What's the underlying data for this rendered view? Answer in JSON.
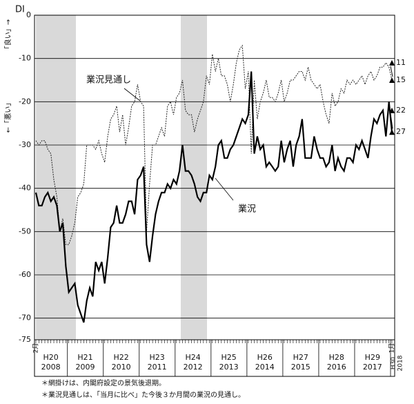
{
  "chart_data": {
    "type": "line",
    "y_label": "DI",
    "side_label_top": "「良い」→",
    "side_label_bottom": "←「悪い」",
    "categories": [
      "2月",
      null,
      null,
      null,
      null,
      null,
      null,
      null,
      null,
      null,
      null,
      null,
      null,
      null,
      null,
      null,
      null,
      null,
      null,
      null,
      null,
      null,
      null,
      null,
      null,
      null,
      null,
      null,
      null,
      null,
      null,
      null,
      null,
      null,
      null,
      null,
      null,
      null,
      null,
      null,
      null,
      null,
      null,
      null,
      null,
      null,
      null,
      null,
      null,
      null,
      null,
      null,
      null,
      null,
      null,
      null,
      null,
      null,
      null,
      null,
      null,
      null,
      null,
      null,
      null,
      null,
      null,
      null,
      null,
      null,
      null,
      null,
      null,
      null,
      null,
      null,
      null,
      null,
      null,
      null,
      null,
      null,
      null,
      null,
      null,
      null,
      null,
      null,
      null,
      null,
      null,
      null,
      null,
      null,
      null,
      null,
      null,
      null,
      null,
      null,
      null,
      null,
      null,
      null,
      null,
      null,
      null,
      null,
      null,
      null,
      null,
      null,
      null,
      null,
      null,
      null,
      null,
      null,
      null,
      "1月"
    ],
    "year_labels": [
      {
        "era": "H20",
        "year": "2008"
      },
      {
        "era": "H21",
        "year": "2009"
      },
      {
        "era": "H22",
        "year": "2010"
      },
      {
        "era": "H23",
        "year": "2011"
      },
      {
        "era": "H24",
        "year": "2012"
      },
      {
        "era": "H25",
        "year": "2013"
      },
      {
        "era": "H26",
        "year": "2014"
      },
      {
        "era": "H27",
        "year": "2015"
      },
      {
        "era": "H28",
        "year": "2016"
      },
      {
        "era": "H29",
        "year": "2017"
      },
      {
        "era": "H30",
        "year": "2018"
      }
    ],
    "series": [
      {
        "name": "業況見通し",
        "color": "#222",
        "dash": true,
        "values": [
          -29,
          -30,
          -29,
          -29,
          -31,
          -32,
          -38,
          -42,
          -50,
          -47,
          -53,
          -53,
          -51,
          -48,
          -42,
          -41,
          -39,
          -30,
          -30,
          -30,
          -31,
          -29,
          -32,
          -34,
          -28,
          -24,
          -23,
          -21,
          -27,
          -23,
          -30,
          -26,
          -21,
          -20,
          -16,
          -20,
          -21,
          -50,
          -39,
          -30,
          -30,
          -28,
          -26,
          -28,
          -21,
          -20,
          -23,
          -19,
          -18,
          -15,
          -22,
          -23,
          -23,
          -27,
          -24,
          -22,
          -20,
          -14,
          -16,
          -9,
          -13,
          -10,
          -14,
          -14,
          -16,
          -20,
          -16,
          -11,
          -8,
          -7,
          -17,
          -13,
          -32,
          -15,
          -24,
          -20,
          -18,
          -15,
          -19,
          -19,
          -20,
          -18,
          -15,
          -20,
          -18,
          -15,
          -15,
          -14,
          -13,
          -13,
          -15,
          -12,
          -15,
          -16,
          -17,
          -16,
          -20,
          -23,
          -25,
          -18,
          -21,
          -20,
          -17,
          -18,
          -15,
          -16,
          -15,
          -16,
          -15,
          -14,
          -16,
          -14,
          -13,
          -15,
          -14,
          -12,
          -12,
          -11,
          -12,
          -15
        ]
      },
      {
        "name": "業況",
        "color": "#000",
        "dash": false,
        "values": [
          -41,
          -44,
          -44,
          -42,
          -41,
          -43,
          -42,
          -44,
          -50,
          -48,
          -58,
          -64,
          -63,
          -62,
          -67,
          -69,
          -71,
          -66,
          -63,
          -65,
          -57,
          -59,
          -57,
          -62,
          -56,
          -49,
          -48,
          -44,
          -48,
          -48,
          -46,
          -43,
          -43,
          -46,
          -38,
          -37,
          -35,
          -53,
          -57,
          -51,
          -46,
          -43,
          -41,
          -41,
          -39,
          -40,
          -38,
          -39,
          -36,
          -30,
          -36,
          -36,
          -37,
          -39,
          -42,
          -43,
          -41,
          -41,
          -37,
          -38,
          -35,
          -30,
          -29,
          -33,
          -33,
          -31,
          -30,
          -28,
          -26,
          -24,
          -25,
          -23,
          -13,
          -32,
          -28,
          -31,
          -30,
          -35,
          -34,
          -35,
          -36,
          -35,
          -29,
          -34,
          -31,
          -29,
          -35,
          -30,
          -28,
          -24,
          -33,
          -33,
          -33,
          -28,
          -31,
          -33,
          -33,
          -35,
          -34,
          -30,
          -36,
          -33,
          -35,
          -36,
          -33,
          -33,
          -34,
          -30,
          -31,
          -29,
          -31,
          -33,
          -28,
          -24,
          -25,
          -23,
          -22,
          -28,
          -20,
          -27
        ]
      }
    ],
    "annotations": [
      {
        "value": -11,
        "label": "11"
      },
      {
        "value": -15,
        "label": "15"
      },
      {
        "value": -22,
        "label": "22"
      },
      {
        "value": -27,
        "label": "27"
      }
    ],
    "ylim": [
      -75,
      0
    ],
    "yticks": [
      0,
      -10,
      -20,
      -30,
      -40,
      -50,
      -60,
      -70,
      -75
    ],
    "grid": true,
    "notes": [
      "＊網掛けは、内閣府設定の景気後退期。",
      "＊業況見通しは、「当月に比べ」た今後３か月間の業況の見通し。"
    ]
  }
}
